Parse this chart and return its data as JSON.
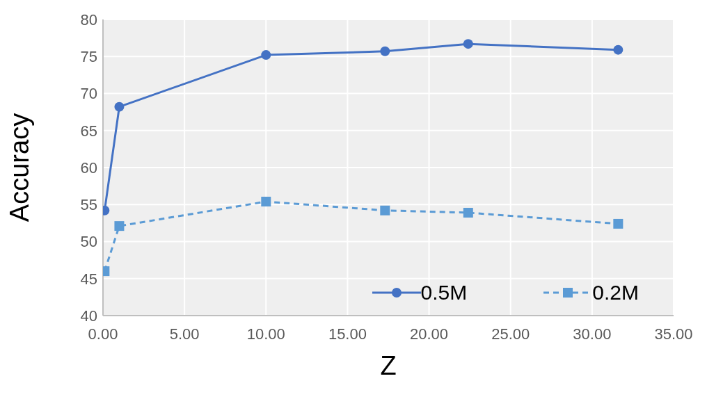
{
  "chart_data": {
    "type": "line",
    "xlabel": "Z",
    "ylabel": "Accuracy",
    "x": [
      0.1,
      1,
      10,
      17.3,
      22.4,
      31.6
    ],
    "series": [
      {
        "name": "0.5M",
        "color": "#4472c4",
        "values": [
          54.2,
          68.2,
          75.2,
          75.7,
          76.7,
          75.9
        ],
        "marker": "circle",
        "line_style": "solid"
      },
      {
        "name": "0.2M",
        "color": "#5b9bd5",
        "values": [
          46.0,
          52.1,
          55.4,
          54.2,
          53.9,
          52.4
        ],
        "marker": "square",
        "line_style": "dashed"
      }
    ],
    "xlim": [
      0,
      35
    ],
    "xticks": [
      {
        "value": 0,
        "label": "0.00"
      },
      {
        "value": 5,
        "label": "5.00"
      },
      {
        "value": 10,
        "label": "10.00"
      },
      {
        "value": 15,
        "label": "15.00"
      },
      {
        "value": 20,
        "label": "20.00"
      },
      {
        "value": 25,
        "label": "25.00"
      },
      {
        "value": 30,
        "label": "30.00"
      },
      {
        "value": 35,
        "label": "35.00"
      }
    ],
    "ylim": [
      40,
      80
    ],
    "yticks": [
      40,
      45,
      50,
      55,
      60,
      65,
      70,
      75,
      80
    ],
    "grid": true,
    "legend": "bottom right"
  }
}
